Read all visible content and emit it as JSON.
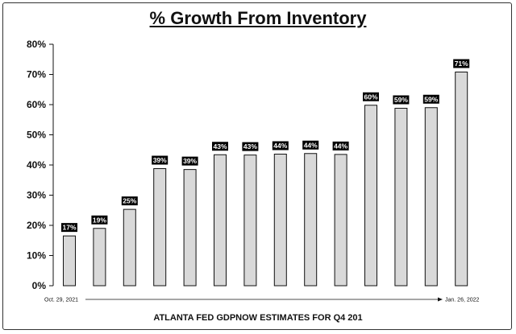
{
  "chart_data": {
    "type": "bar",
    "title": "% Growth From Inventory",
    "xlabel": "ATLANTA FED GDPNOW ESTIMATES FOR Q4 201",
    "x_start_label": "Oct. 29, 2021",
    "x_end_label": "Jan. 26, 2022",
    "ylabel": "",
    "ylim": [
      0,
      80
    ],
    "y_ticks": [
      "0%",
      "10%",
      "20%",
      "30%",
      "40%",
      "50%",
      "60%",
      "70%",
      "80%"
    ],
    "values": [
      16.5,
      19,
      25.3,
      38.8,
      38.5,
      43.4,
      43.3,
      43.6,
      43.8,
      43.5,
      59.8,
      58.8,
      59,
      70.8
    ],
    "data_labels": [
      "17%",
      "19%",
      "25%",
      "39%",
      "39%",
      "43%",
      "43%",
      "44%",
      "44%",
      "44%",
      "60%",
      "59%",
      "59%",
      "71%"
    ],
    "grid": false,
    "bar_color": "#d9d9d9",
    "bar_edge_color": "#111111",
    "label_bg_color": "#000000"
  }
}
